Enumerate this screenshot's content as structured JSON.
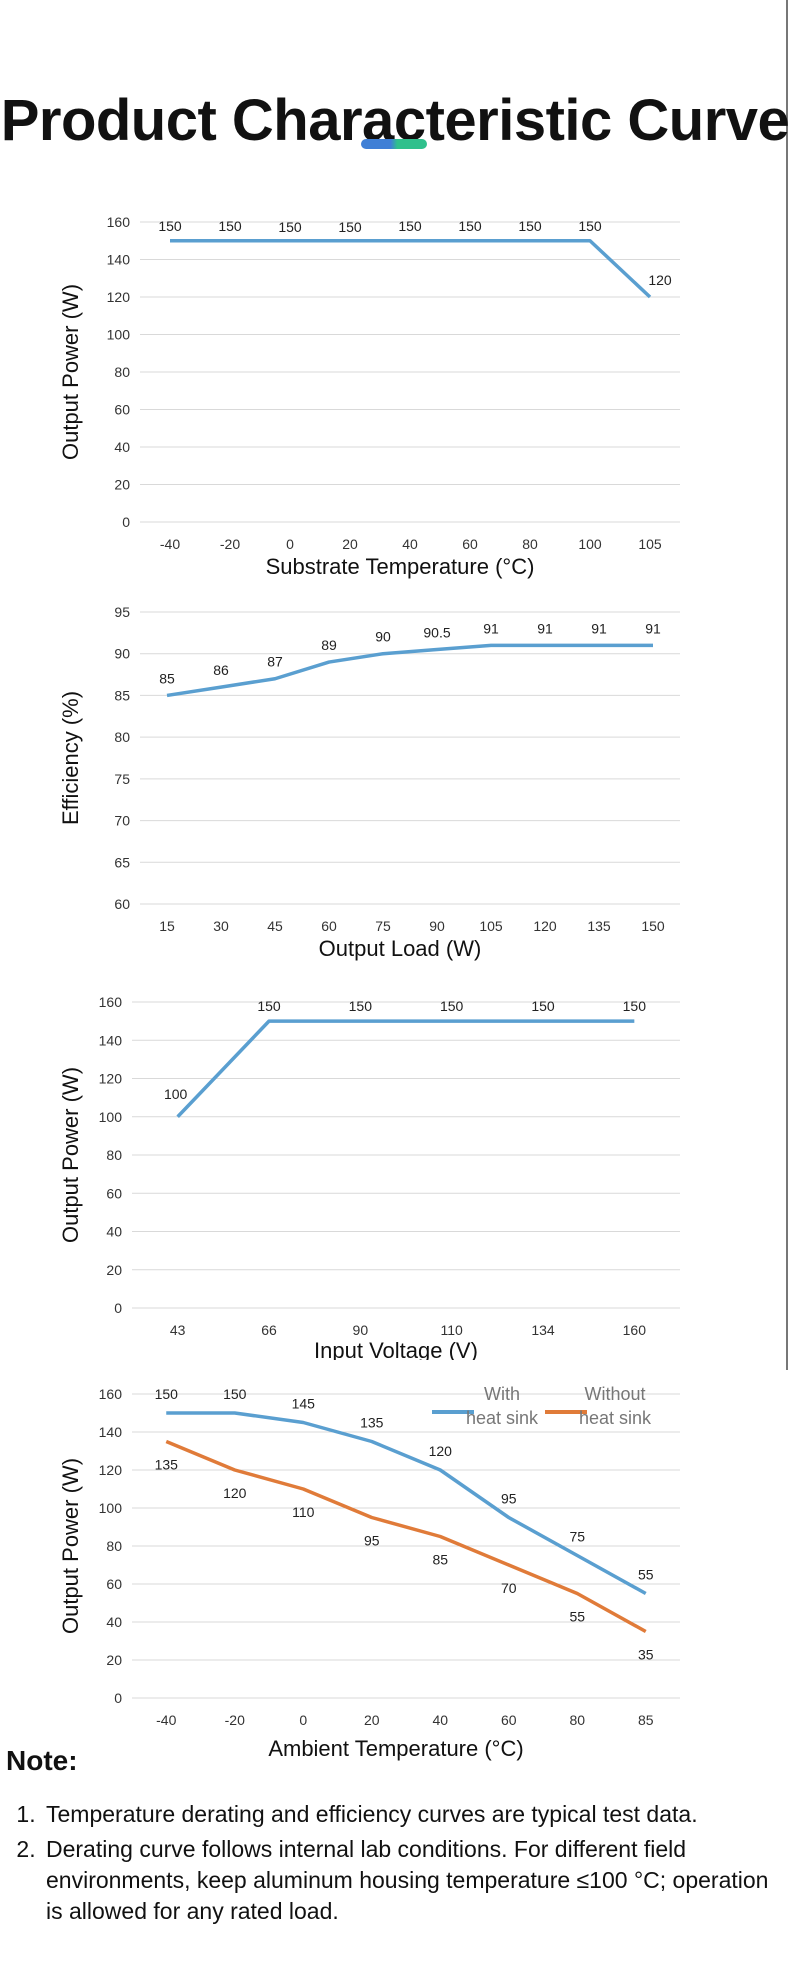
{
  "page": {
    "title": "Product Characteristic Curve",
    "accent_colors": [
      "#3f7fd6",
      "#2fc08c"
    ]
  },
  "chart_data": [
    {
      "type": "line",
      "categories": [
        "-40",
        "-20",
        "0",
        "20",
        "40",
        "60",
        "80",
        "100",
        "105"
      ],
      "series": [
        {
          "values": [
            150,
            150,
            150,
            150,
            150,
            150,
            150,
            150,
            120
          ],
          "color": "#5a9fd0"
        }
      ],
      "data_labels": [
        "150",
        "150",
        "150",
        "150",
        "150",
        "150",
        "150",
        "150",
        "120"
      ],
      "xlabel": "Substrate Temperature (°C)",
      "ylabel": "Output Power (W)",
      "ylim": [
        0,
        160
      ],
      "yticks": [
        "0",
        "20",
        "40",
        "60",
        "80",
        "100",
        "120",
        "140",
        "160"
      ],
      "grid": true
    },
    {
      "type": "line",
      "categories": [
        "15",
        "30",
        "45",
        "60",
        "75",
        "90",
        "105",
        "120",
        "135",
        "150"
      ],
      "series": [
        {
          "values": [
            85,
            86,
            87,
            89,
            90,
            90.5,
            91,
            91,
            91,
            91
          ],
          "color": "#5a9fd0"
        }
      ],
      "data_labels": [
        "85",
        "86",
        "87",
        "89",
        "90",
        "90.5",
        "91",
        "91",
        "91",
        "91"
      ],
      "xlabel": "Output Load (W)",
      "ylabel": "Efficiency (%)",
      "ylim": [
        60,
        95
      ],
      "yticks": [
        "60",
        "65",
        "70",
        "75",
        "80",
        "85",
        "90",
        "95"
      ],
      "grid": true
    },
    {
      "type": "line",
      "categories": [
        "43",
        "66",
        "90",
        "110",
        "134",
        "160"
      ],
      "series": [
        {
          "values": [
            100,
            150,
            150,
            150,
            150,
            150
          ],
          "color": "#5a9fd0"
        }
      ],
      "data_labels": [
        "100",
        "150",
        "150",
        "150",
        "150",
        "150"
      ],
      "xlabel": "Input Voltage (V)",
      "ylabel": "Output Power (W)",
      "ylim": [
        0,
        160
      ],
      "yticks": [
        "0",
        "20",
        "40",
        "60",
        "80",
        "100",
        "120",
        "140",
        "160"
      ],
      "grid": true
    },
    {
      "type": "line",
      "categories": [
        "-40",
        "-20",
        "0",
        "20",
        "40",
        "60",
        "80",
        "85"
      ],
      "series": [
        {
          "name": "With heat sink",
          "values": [
            150,
            150,
            145,
            135,
            120,
            95,
            75,
            55
          ],
          "color": "#5a9fd0",
          "data_labels": [
            "150",
            "150",
            "145",
            "135",
            "120",
            "95",
            "75",
            "55"
          ]
        },
        {
          "name": "Without heat sink",
          "values": [
            135,
            120,
            110,
            95,
            85,
            70,
            55,
            35
          ],
          "color": "#e07b39",
          "data_labels": [
            "135",
            "120",
            "110",
            "95",
            "85",
            "70",
            "55",
            "35"
          ]
        }
      ],
      "xlabel": "Ambient Temperature (°C)",
      "ylabel": "Output Power (W)",
      "ylim": [
        0,
        160
      ],
      "yticks": [
        "0",
        "20",
        "40",
        "60",
        "80",
        "100",
        "120",
        "140",
        "160"
      ],
      "grid": true,
      "legend": "top-right"
    }
  ],
  "note": {
    "title": "Note:",
    "items": [
      "Temperature derating and efficiency curves are typical test data.",
      "Derating curve follows internal lab conditions. For different field environments, keep aluminum housing temperature ≤100 °C; operation is allowed for any rated load."
    ]
  }
}
